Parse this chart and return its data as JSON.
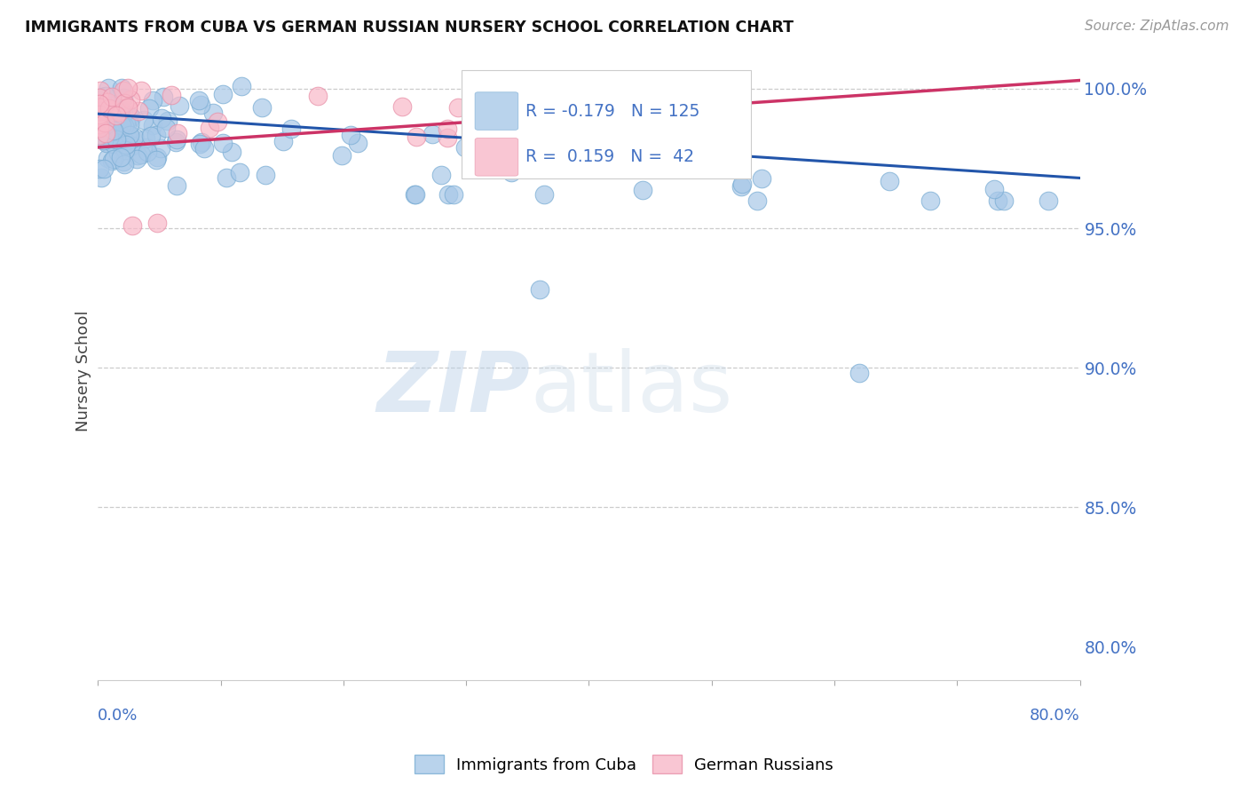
{
  "title": "IMMIGRANTS FROM CUBA VS GERMAN RUSSIAN NURSERY SCHOOL CORRELATION CHART",
  "source_text": "Source: ZipAtlas.com",
  "ylabel": "Nursery School",
  "ytick_values": [
    1.0,
    0.95,
    0.9,
    0.85,
    0.8
  ],
  "xlim": [
    0.0,
    0.8
  ],
  "ylim": [
    0.788,
    1.01
  ],
  "R_blue": -0.179,
  "N_blue": 125,
  "R_pink": 0.159,
  "N_pink": 42,
  "blue_color": "#a8c8e8",
  "blue_edge_color": "#7aadd4",
  "blue_line_color": "#2255aa",
  "pink_color": "#f8b8c8",
  "pink_edge_color": "#e890a8",
  "pink_line_color": "#cc3366",
  "legend_label_blue": "Immigrants from Cuba",
  "legend_label_pink": "German Russians",
  "watermark_text": "ZIPatlas",
  "background_color": "#ffffff",
  "dashed_line_color": "#cccccc",
  "grid_color": "#e8e8e8"
}
